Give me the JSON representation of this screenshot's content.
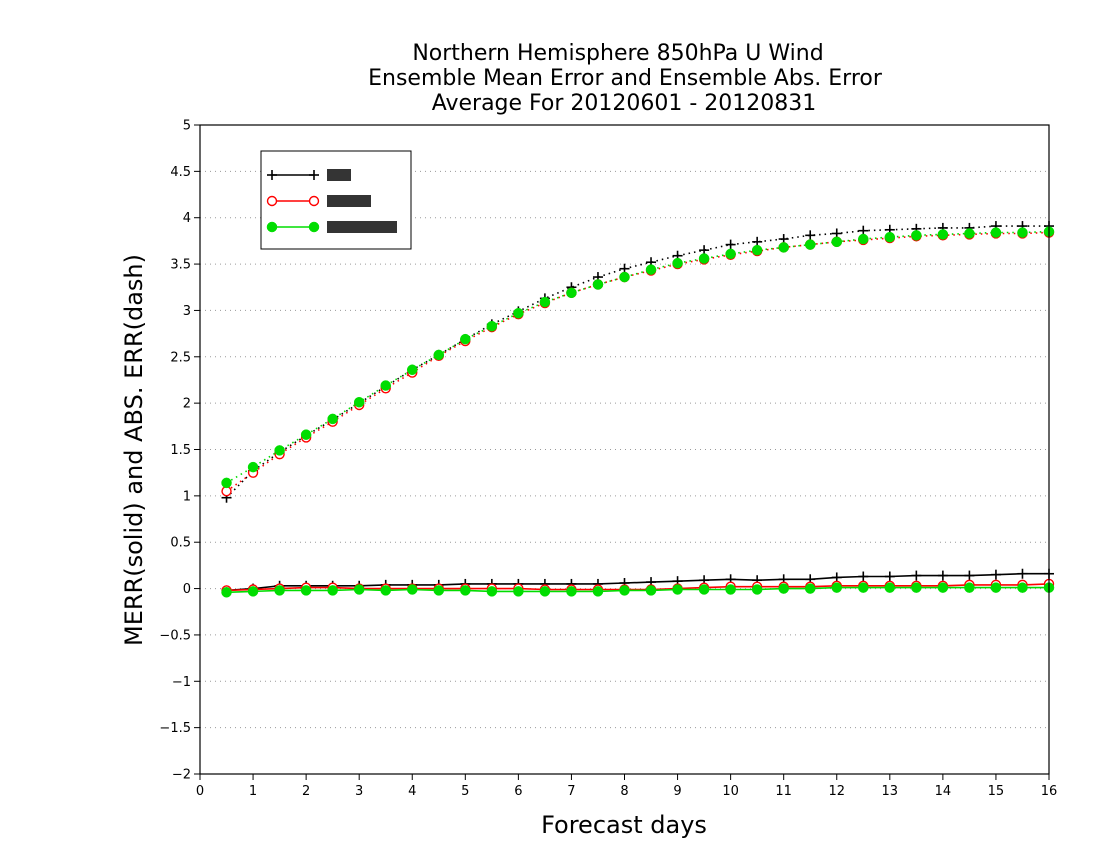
{
  "chart_data": {
    "type": "line",
    "title": [
      "Northern Hemisphere 850hPa U Wind",
      "Ensemble Mean Error and Ensemble Abs. Error",
      "Average For 20120601 - 20120831"
    ],
    "xlabel": "Forecast days",
    "ylabel": "MERR(solid) and ABS. ERR(dash)",
    "xlim": [
      0,
      16
    ],
    "ylim": [
      -2,
      5
    ],
    "xticks": [
      0,
      1,
      2,
      3,
      4,
      5,
      6,
      7,
      8,
      9,
      10,
      11,
      12,
      13,
      14,
      15,
      16
    ],
    "yticks": [
      -2,
      -1.5,
      -1,
      -0.5,
      0,
      0.5,
      1,
      1.5,
      2,
      2.5,
      3,
      3.5,
      4,
      4.5,
      5
    ],
    "grid": "horizontal dotted",
    "legend_position": "top-left",
    "x": [
      0.5,
      1,
      1.5,
      2,
      2.5,
      3,
      3.5,
      4,
      4.5,
      5,
      5.5,
      6,
      6.5,
      7,
      7.5,
      8,
      8.5,
      9,
      9.5,
      10,
      10.5,
      11,
      11.5,
      12,
      12.5,
      13,
      13.5,
      14,
      14.5,
      15,
      15.5,
      16
    ],
    "series": [
      {
        "color": "#000000",
        "marker": "plus",
        "mean_error": [
          -0.02,
          0.0,
          0.03,
          0.03,
          0.03,
          0.03,
          0.04,
          0.04,
          0.04,
          0.05,
          0.05,
          0.05,
          0.05,
          0.05,
          0.05,
          0.06,
          0.07,
          0.08,
          0.09,
          0.1,
          0.09,
          0.1,
          0.1,
          0.12,
          0.13,
          0.13,
          0.14,
          0.14,
          0.14,
          0.15,
          0.16,
          0.16
        ],
        "abs_error": [
          0.98,
          1.27,
          1.47,
          1.65,
          1.82,
          2.0,
          2.18,
          2.36,
          2.52,
          2.69,
          2.85,
          2.99,
          3.13,
          3.25,
          3.36,
          3.45,
          3.52,
          3.59,
          3.65,
          3.71,
          3.74,
          3.77,
          3.81,
          3.83,
          3.86,
          3.87,
          3.88,
          3.89,
          3.89,
          3.91,
          3.91,
          3.91
        ]
      },
      {
        "color": "#ff0000",
        "marker": "open-circle",
        "mean_error": [
          -0.02,
          -0.01,
          0.0,
          0.01,
          0.01,
          0.0,
          0.0,
          0.0,
          0.0,
          0.0,
          0.0,
          0.0,
          -0.01,
          -0.01,
          -0.01,
          -0.01,
          -0.01,
          0.0,
          0.01,
          0.02,
          0.02,
          0.02,
          0.02,
          0.03,
          0.03,
          0.03,
          0.03,
          0.03,
          0.04,
          0.04,
          0.04,
          0.05
        ],
        "abs_error": [
          1.05,
          1.25,
          1.45,
          1.63,
          1.8,
          1.98,
          2.16,
          2.33,
          2.51,
          2.67,
          2.82,
          2.96,
          3.08,
          3.19,
          3.28,
          3.36,
          3.43,
          3.5,
          3.55,
          3.6,
          3.64,
          3.68,
          3.71,
          3.74,
          3.76,
          3.78,
          3.8,
          3.81,
          3.82,
          3.83,
          3.83,
          3.84
        ]
      },
      {
        "color": "#00dd00",
        "marker": "filled-circle",
        "mean_error": [
          -0.04,
          -0.03,
          -0.02,
          -0.02,
          -0.02,
          -0.01,
          -0.02,
          -0.01,
          -0.02,
          -0.02,
          -0.03,
          -0.03,
          -0.03,
          -0.03,
          -0.03,
          -0.02,
          -0.02,
          -0.01,
          -0.01,
          -0.01,
          -0.01,
          0.0,
          0.0,
          0.01,
          0.01,
          0.01,
          0.01,
          0.01,
          0.01,
          0.01,
          0.01,
          0.01
        ],
        "abs_error": [
          1.14,
          1.31,
          1.49,
          1.66,
          1.83,
          2.01,
          2.19,
          2.36,
          2.52,
          2.69,
          2.83,
          2.97,
          3.09,
          3.19,
          3.28,
          3.36,
          3.44,
          3.51,
          3.56,
          3.61,
          3.65,
          3.68,
          3.71,
          3.74,
          3.77,
          3.79,
          3.81,
          3.82,
          3.83,
          3.84,
          3.84,
          3.85
        ]
      }
    ]
  }
}
